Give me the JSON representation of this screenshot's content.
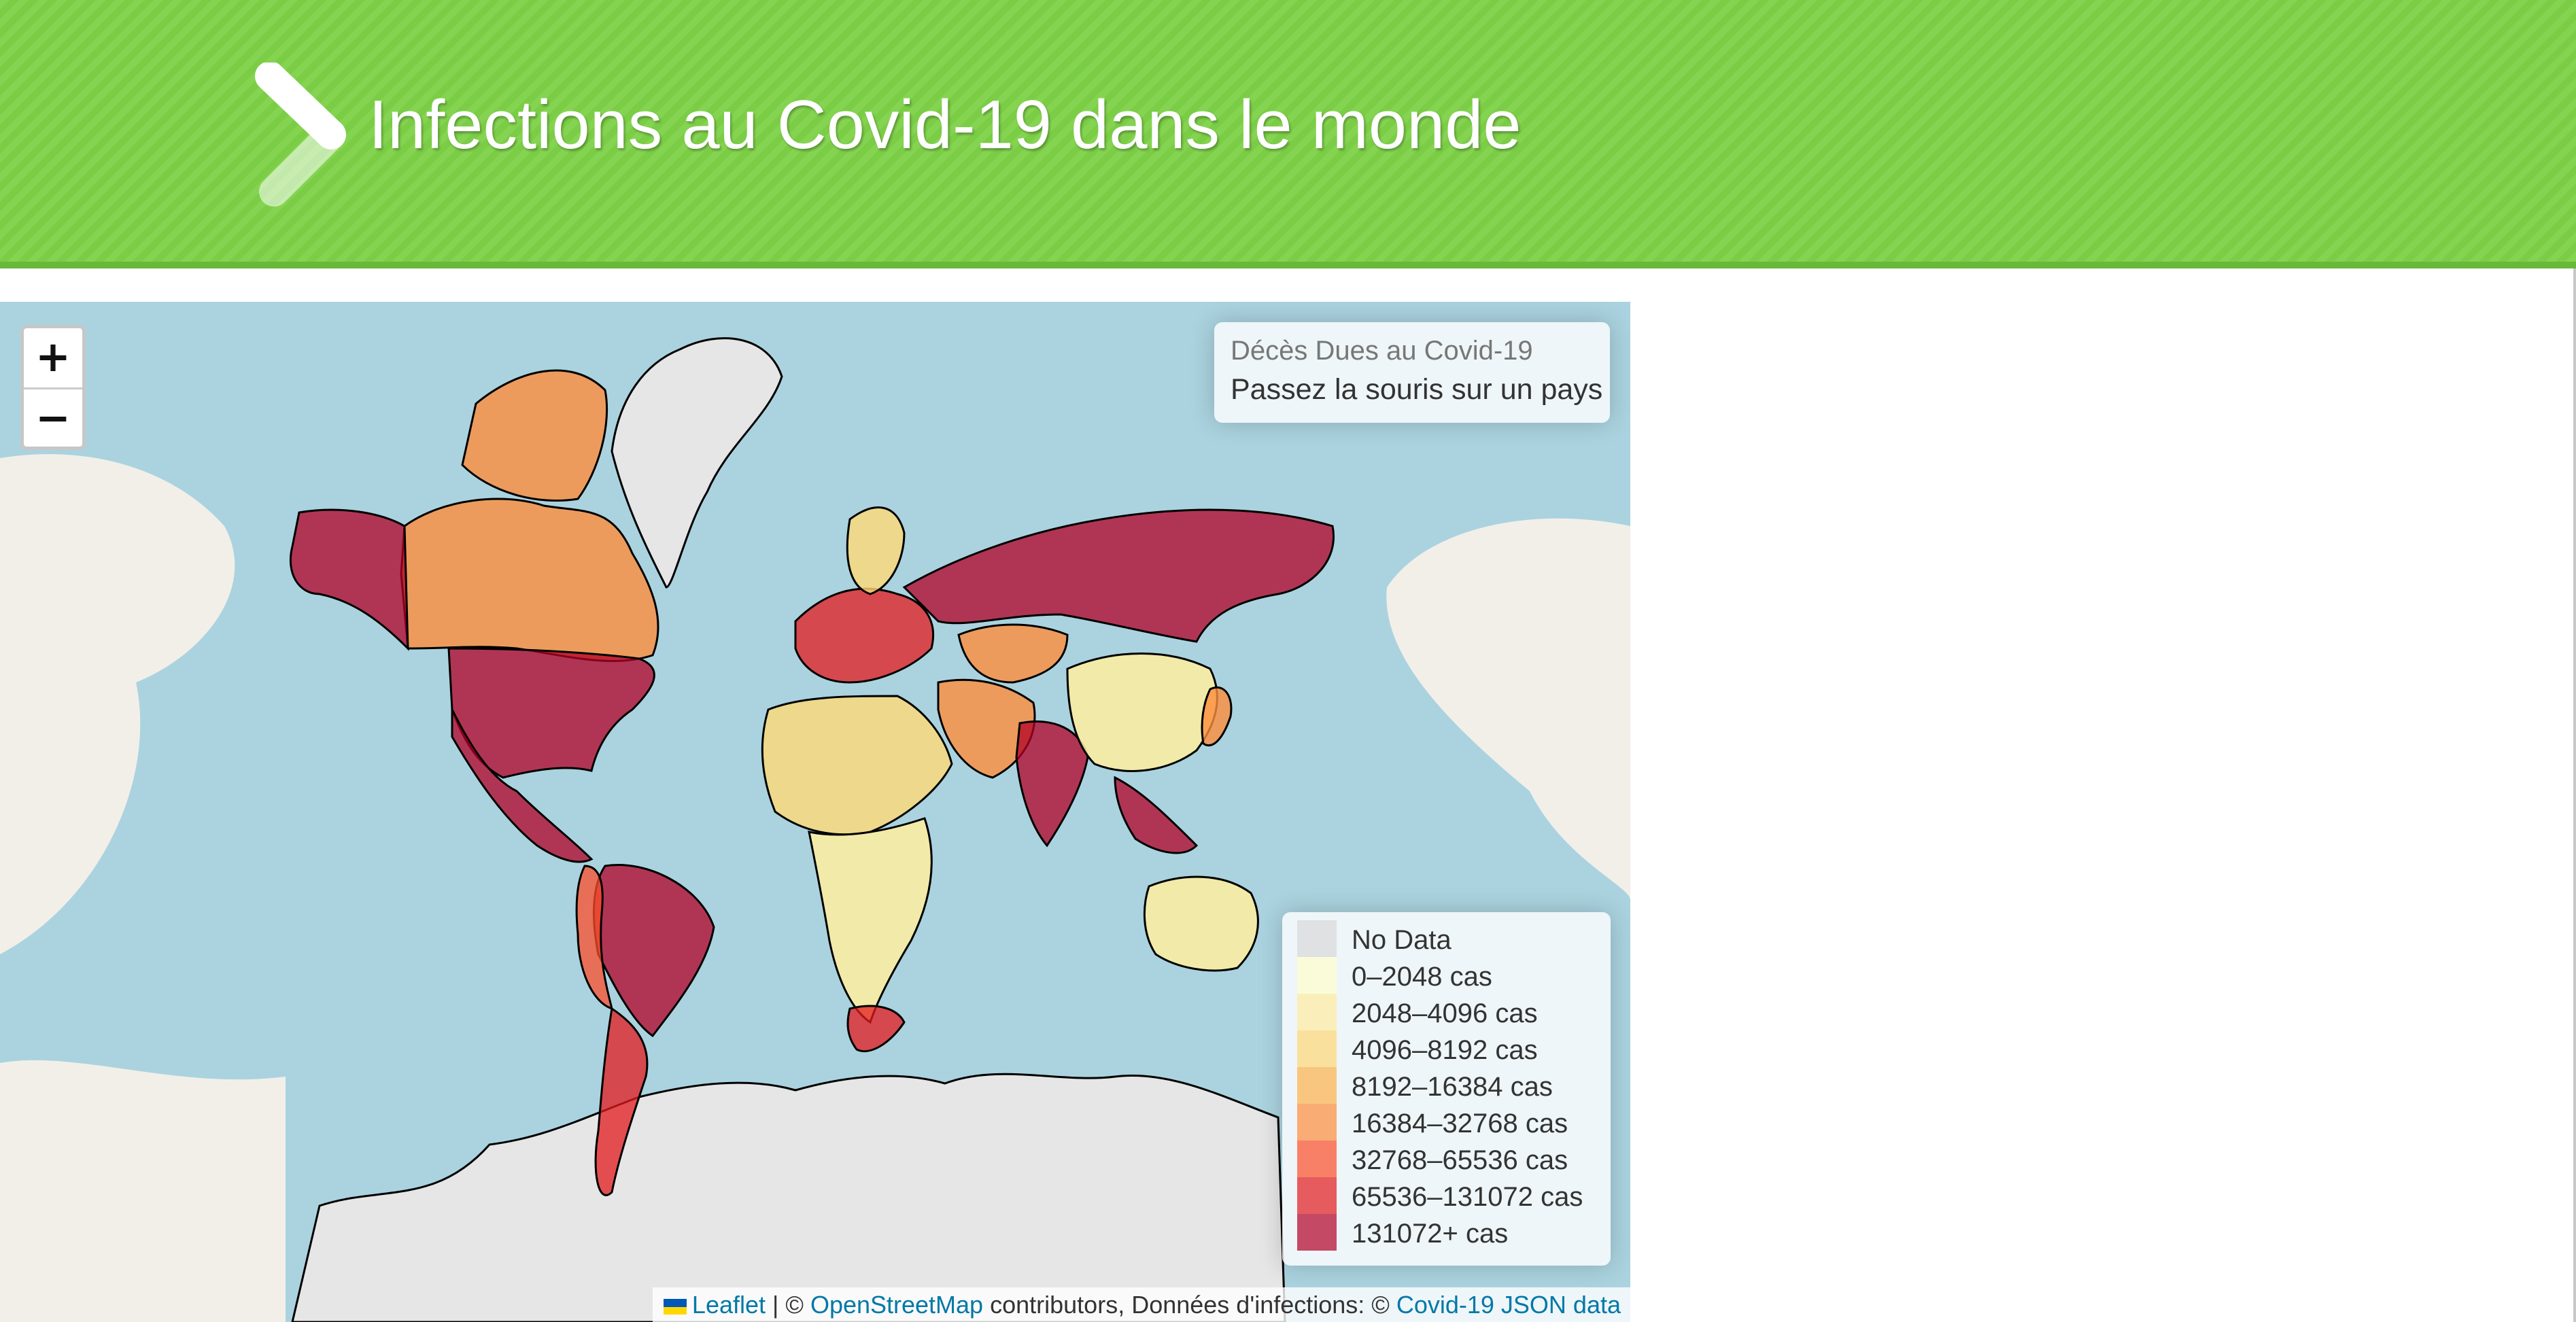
{
  "header": {
    "title": "Infections au Covid-19 dans le monde",
    "background_color": "#7ed248"
  },
  "map": {
    "zoom_in_label": "+",
    "zoom_out_label": "−",
    "ocean_color": "#aad3df",
    "land_tile_color": "#f2efe9",
    "info": {
      "title": "Décès Dues au Covid-19",
      "hint": "Passez la souris sur un pays"
    },
    "legend": [
      {
        "label": "No Data",
        "color": "#d9d9d9"
      },
      {
        "label": "0–2048 cas",
        "color": "#ffffcc"
      },
      {
        "label": "2048–4096 cas",
        "color": "#ffeda0"
      },
      {
        "label": "4096–8192 cas",
        "color": "#fed976"
      },
      {
        "label": "8192–16384 cas",
        "color": "#feb24c"
      },
      {
        "label": "16384–32768 cas",
        "color": "#fd8d3c"
      },
      {
        "label": "32768–65536 cas",
        "color": "#fc4e2a"
      },
      {
        "label": "65536–131072 cas",
        "color": "#e31a1c"
      },
      {
        "label": "131072+ cas",
        "color": "#b10026"
      }
    ],
    "attribution": {
      "leaflet": "Leaflet",
      "sep": "| ©",
      "osm": "OpenStreetMap",
      "contributors": "contributors, Données d'infections: ©",
      "source": "Covid-19 JSON data"
    }
  }
}
